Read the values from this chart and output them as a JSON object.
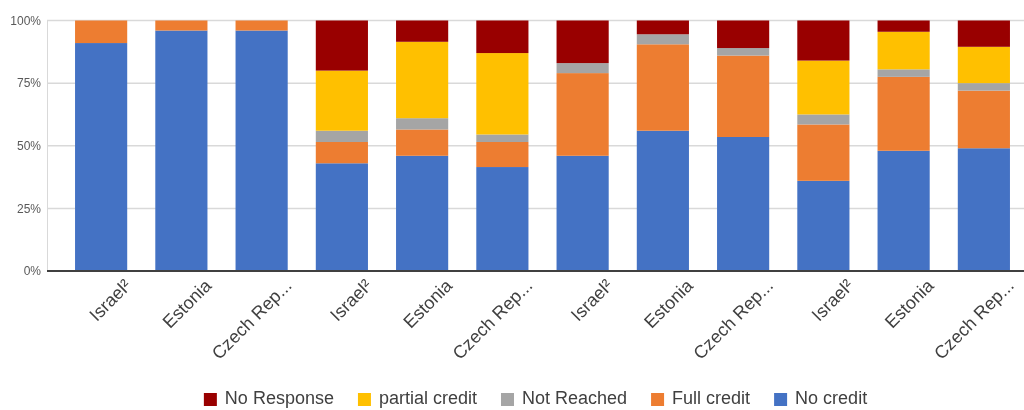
{
  "chart_data": {
    "type": "bar",
    "stacked": true,
    "categories": [
      "Israel²",
      "Estonia",
      "Czech Rep...",
      "Israel²",
      "Estonia",
      "Czech Rep...",
      "Israel²",
      "Estonia",
      "Czech Rep...",
      "Israel²",
      "Estonia",
      "Czech Rep..."
    ],
    "series": [
      {
        "name": "No credit",
        "color": "#4472c4",
        "values": [
          91,
          96,
          96,
          43,
          46,
          41.5,
          46,
          56,
          53.5,
          36,
          48,
          49
        ]
      },
      {
        "name": "Full credit",
        "color": "#ed7d31",
        "values": [
          9,
          4,
          4,
          8.5,
          10.5,
          10,
          33,
          34.5,
          32.5,
          22.5,
          29.5,
          23
        ]
      },
      {
        "name": "Not Reached",
        "color": "#a5a5a5",
        "values": [
          0,
          0,
          0,
          4.5,
          4.5,
          3,
          4,
          4,
          3,
          4,
          3,
          3
        ]
      },
      {
        "name": "partial credit",
        "color": "#ffc000",
        "values": [
          0,
          0,
          0,
          24,
          30.5,
          32.5,
          0,
          0,
          0,
          21.5,
          15,
          14.5
        ]
      },
      {
        "name": "No Response",
        "color": "#990000",
        "values": [
          0,
          0,
          0,
          20,
          8.5,
          13,
          17,
          5.5,
          11,
          16,
          4.5,
          10.5
        ]
      }
    ],
    "ylim": [
      0,
      100
    ],
    "yticks": [
      {
        "value": 0,
        "label": "0%"
      },
      {
        "value": 25,
        "label": "25%"
      },
      {
        "value": 50,
        "label": "50%"
      },
      {
        "value": 75,
        "label": "75%"
      },
      {
        "value": 100,
        "label": "100%"
      }
    ],
    "grid": "y",
    "legend": "bottom"
  }
}
